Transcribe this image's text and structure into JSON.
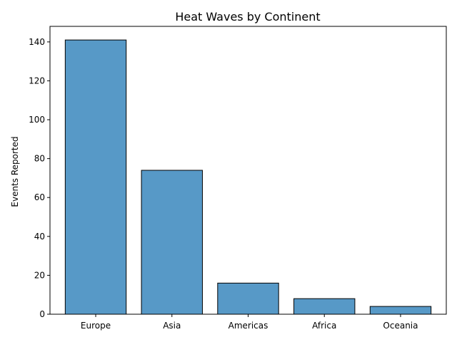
{
  "chart_data": {
    "type": "bar",
    "title": "Heat Waves by Continent",
    "xlabel": "",
    "ylabel": "Events Reported",
    "categories": [
      "Europe",
      "Asia",
      "Americas",
      "Africa",
      "Oceania"
    ],
    "values": [
      141,
      74,
      16,
      8,
      4
    ],
    "ylim": [
      0,
      148
    ],
    "yticks": [
      0,
      20,
      40,
      60,
      80,
      100,
      120,
      140
    ],
    "grid": false,
    "legend": "none",
    "bar_color": "#5799c7",
    "bar_edge_color": "#000000"
  }
}
